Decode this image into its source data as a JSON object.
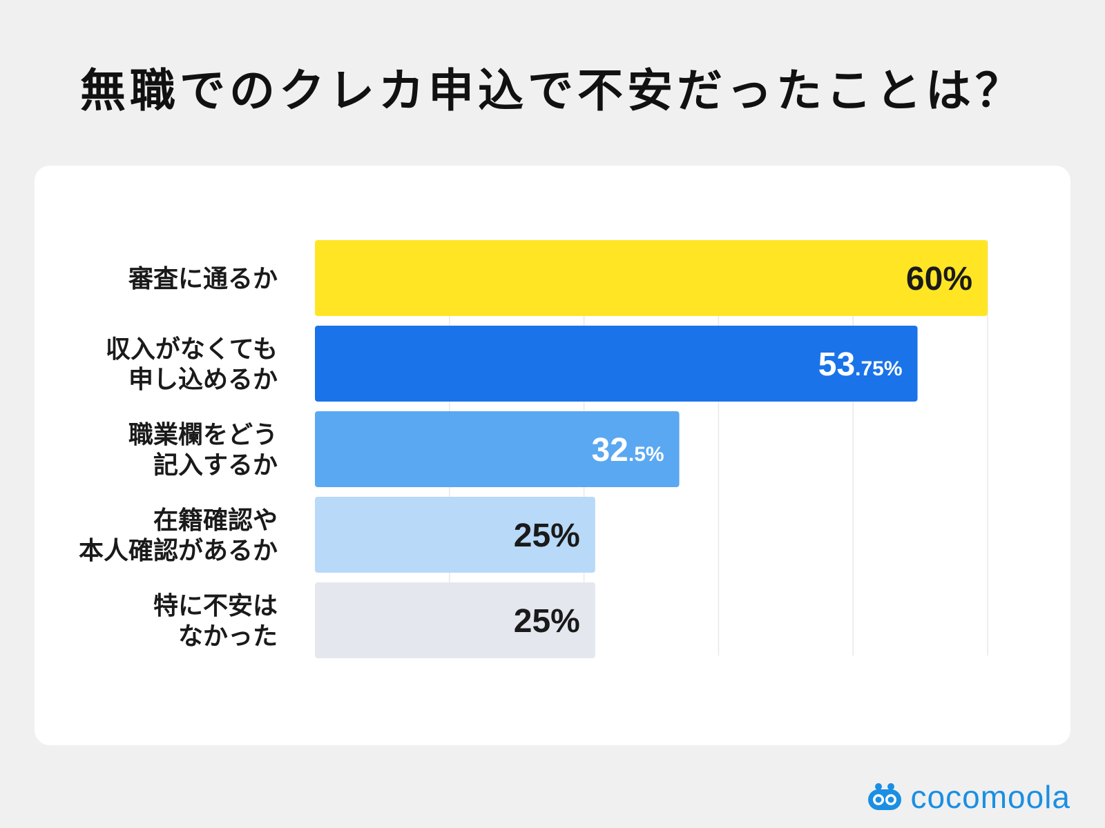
{
  "title": "無職でのクレカ申込で不安だったことは？",
  "chart_data": {
    "type": "bar",
    "orientation": "horizontal",
    "grid": true,
    "categories": [
      [
        "審査に通るか"
      ],
      [
        "収入がなくても",
        "申し込めるか"
      ],
      [
        "職業欄をどう",
        "記入するか"
      ],
      [
        "在籍確認や",
        "本人確認があるか"
      ],
      [
        "特に不安は",
        "なかった"
      ]
    ],
    "values": [
      60,
      53.75,
      32.5,
      25,
      25
    ],
    "value_labels": [
      {
        "main": "60%",
        "suffix": ""
      },
      {
        "main": "53",
        "suffix": ".75%"
      },
      {
        "main": "32",
        "suffix": ".5%"
      },
      {
        "main": "25%",
        "suffix": ""
      },
      {
        "main": "25%",
        "suffix": ""
      }
    ],
    "colors": [
      "#ffe524",
      "#1a73e8",
      "#5aa8f2",
      "#b8d9f8",
      "#e4e8ee"
    ],
    "label_colors": [
      "#1a1a1a",
      "#ffffff",
      "#ffffff",
      "#1a1a1a",
      "#1a1a1a"
    ],
    "xlim": [
      0,
      60
    ]
  },
  "logo": {
    "text": "cocomoola",
    "color": "#1a8fe3"
  }
}
